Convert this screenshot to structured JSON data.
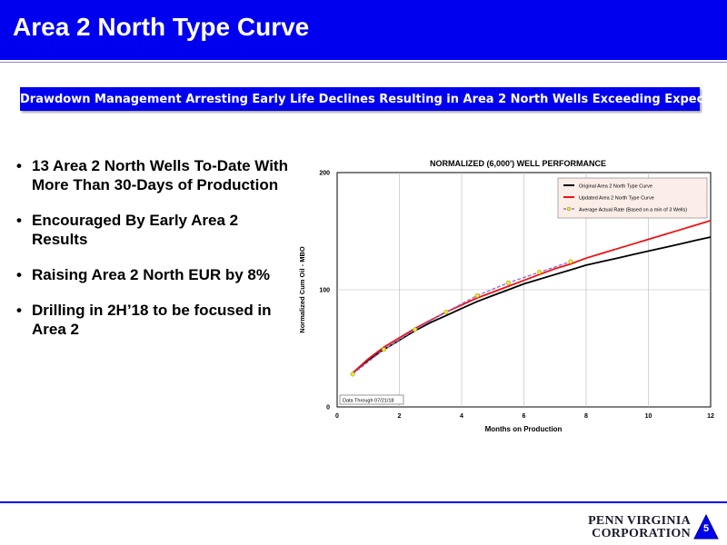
{
  "slide": {
    "title": "Area 2 North Type Curve",
    "banner": "Drawdown Management Arresting Early Life Declines Resulting in Area 2 North Wells Exceeding Expectations",
    "bullets": [
      "13 Area 2 North Wells To-Date With More Than 30-Days of Production",
      "Encouraged By Early Area 2 Results",
      "Raising Area 2 North EUR by 8%",
      "Drilling in 2H’18 to be focused in Area 2"
    ],
    "bullet_glyph": "•",
    "page_number": "5"
  },
  "logo": {
    "line1": "PENN VIRGINIA",
    "line2": "CORPORATION"
  },
  "colors": {
    "brand_blue": "#0000ee",
    "original": "#000000",
    "updated": "#ee1111",
    "actual": "#9b6fd0",
    "actual_marker": "#e8e83a"
  },
  "chart_data": {
    "type": "line",
    "title": "NORMALIZED (6,000') WELL PERFORMANCE",
    "xlabel": "Months on Production",
    "ylabel": "Normalized Cum Oil - MBO",
    "xlim": [
      0,
      12
    ],
    "ylim": [
      0,
      200
    ],
    "xticks": [
      0,
      2,
      4,
      6,
      8,
      10,
      12
    ],
    "yticks": [
      0,
      100,
      200
    ],
    "grid": true,
    "legend_position": "top-right",
    "annotation": "Data Through 07/21/18",
    "series": [
      {
        "name": "Original Area 2 North Type Curve",
        "color": "#000000",
        "x": [
          0.5,
          1,
          1.5,
          2,
          2.5,
          3,
          3.5,
          4,
          4.5,
          5,
          5.5,
          6,
          6.5,
          7,
          7.5,
          8,
          8.5,
          9,
          9.5,
          10,
          10.5,
          11,
          11.5,
          12
        ],
        "y": [
          29,
          40,
          49,
          57,
          65,
          72,
          78,
          84,
          90,
          95,
          100,
          105,
          109,
          113,
          117,
          121,
          124,
          127,
          130,
          133,
          136,
          139,
          142,
          145
        ]
      },
      {
        "name": "Updated Area 2 North Type Curve",
        "color": "#ee1111",
        "x": [
          0.5,
          1,
          1.5,
          2,
          2.5,
          3,
          3.5,
          4,
          4.5,
          5,
          5.5,
          6,
          6.5,
          7,
          7.5,
          8,
          8.5,
          9,
          9.5,
          10,
          10.5,
          11,
          11.5,
          12
        ],
        "y": [
          29,
          41,
          51,
          59,
          67,
          74,
          81,
          87,
          93,
          98,
          103,
          108,
          113,
          118,
          122,
          127,
          131,
          135,
          139,
          143,
          147,
          151,
          155,
          159
        ]
      },
      {
        "name": "Average Actual Rate (Based on a min of 3 Wells)",
        "color": "#9b6fd0",
        "dashed": true,
        "markers": true,
        "x": [
          0.5,
          1.5,
          2.5,
          3.5,
          4.5,
          5.5,
          6.5,
          7.5
        ],
        "y": [
          28,
          49,
          66,
          81,
          95,
          106,
          115,
          124
        ]
      }
    ]
  }
}
